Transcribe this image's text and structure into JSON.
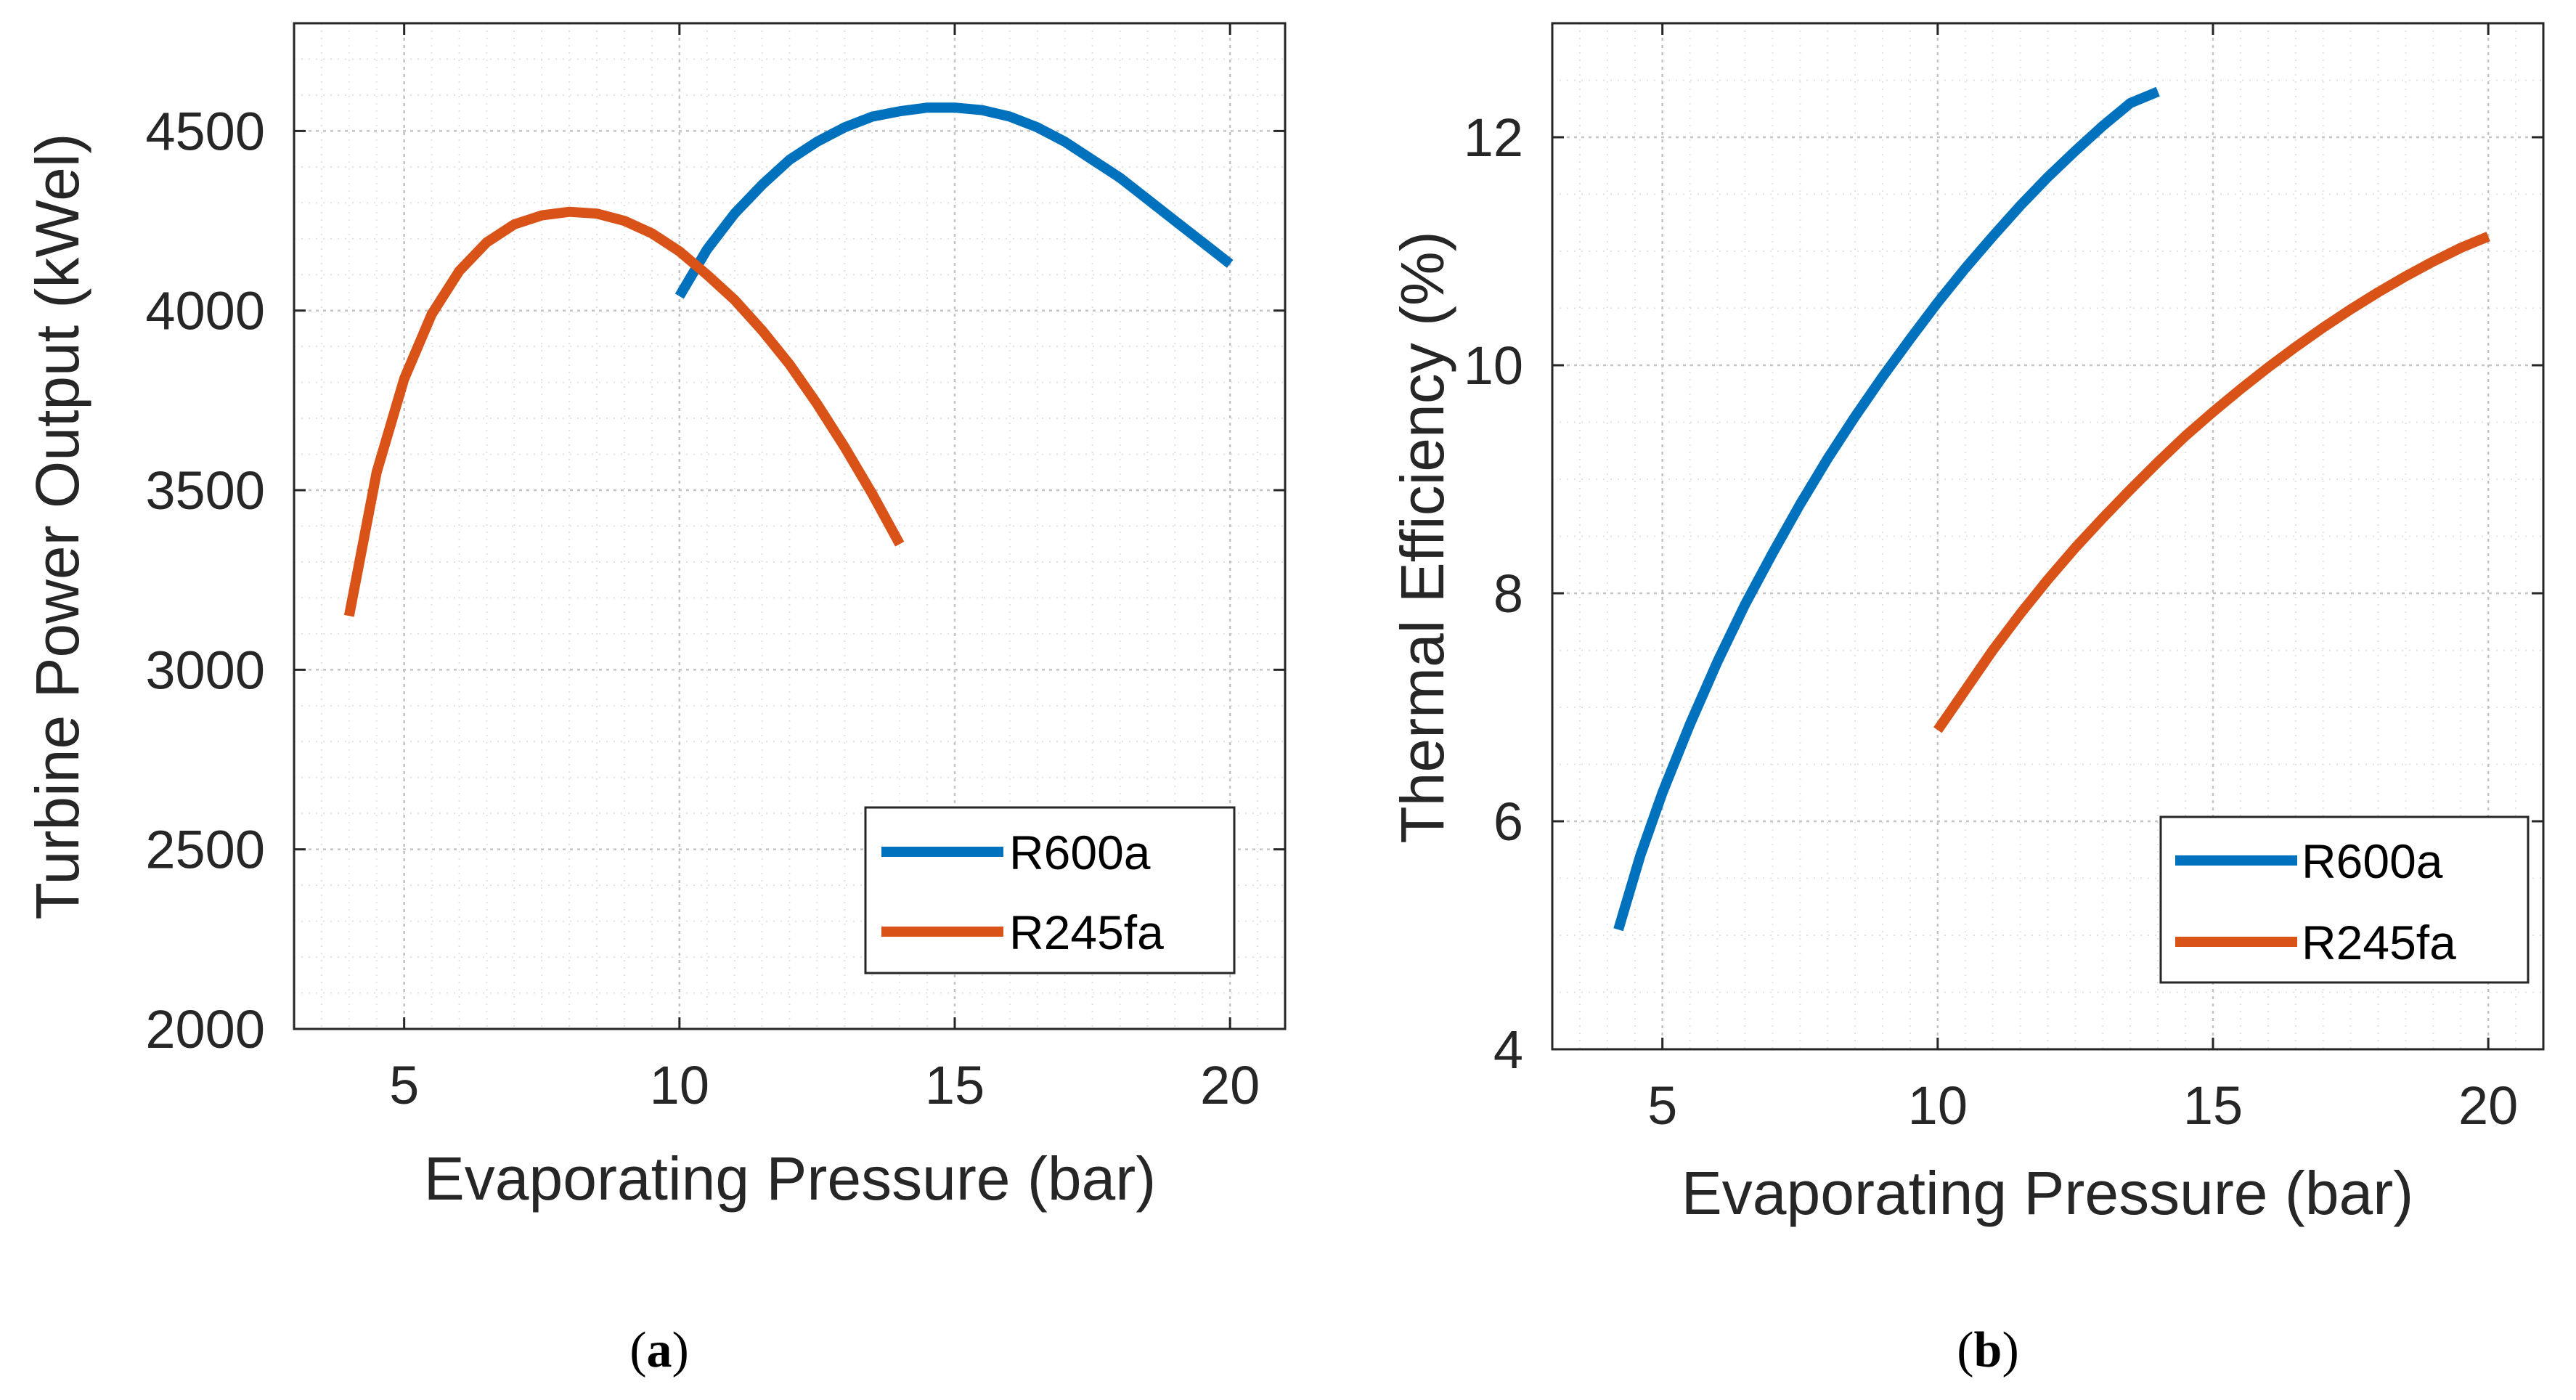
{
  "chart_data": [
    {
      "type": "line",
      "caption_letter": "a",
      "xlabel": "Evaporating Pressure (bar)",
      "ylabel": "Turbine Power Output (kWel)",
      "xlim": [
        3,
        21
      ],
      "ylim": [
        2000,
        4800
      ],
      "xticks": [
        5,
        10,
        15,
        20
      ],
      "yticks": [
        2000,
        2500,
        3000,
        3500,
        4000,
        4500
      ],
      "xminor": [
        3,
        3.5,
        4,
        4.5,
        5.5,
        6,
        6.5,
        7,
        7.5,
        8,
        8.5,
        9,
        9.5,
        10.5,
        11,
        11.5,
        12,
        12.5,
        13,
        13.5,
        14,
        14.5,
        15.5,
        16,
        16.5,
        17,
        17.5,
        18,
        18.5,
        19,
        19.5,
        20.5,
        21
      ],
      "yminor": [
        2100,
        2200,
        2300,
        2400,
        2600,
        2700,
        2800,
        2900,
        3100,
        3200,
        3300,
        3400,
        3600,
        3700,
        3800,
        3900,
        4100,
        4200,
        4300,
        4400,
        4600,
        4700
      ],
      "grid": "on",
      "legend_location": "bottom-right",
      "series": [
        {
          "name": "R600a",
          "color": "#0072BD",
          "x": [
            10,
            10.5,
            11,
            11.5,
            12,
            12.5,
            13,
            13.5,
            14,
            14.5,
            15,
            15.5,
            16,
            16.5,
            17,
            17.5,
            18,
            18.5,
            19,
            19.5,
            20
          ],
          "y": [
            4040,
            4170,
            4270,
            4350,
            4420,
            4470,
            4510,
            4540,
            4555,
            4565,
            4565,
            4558,
            4540,
            4510,
            4470,
            4420,
            4370,
            4310,
            4250,
            4190,
            4130
          ]
        },
        {
          "name": "R245fa",
          "color": "#D95319",
          "x": [
            4,
            4.5,
            5,
            5.5,
            6,
            6.5,
            7,
            7.5,
            8,
            8.5,
            9,
            9.5,
            10,
            10.5,
            11,
            11.5,
            12,
            12.5,
            13,
            13.5,
            14
          ],
          "y": [
            3150,
            3550,
            3810,
            3990,
            4110,
            4190,
            4240,
            4265,
            4275,
            4270,
            4250,
            4215,
            4165,
            4100,
            4030,
            3945,
            3850,
            3740,
            3620,
            3490,
            3350
          ]
        }
      ]
    },
    {
      "type": "line",
      "caption_letter": "b",
      "xlabel": "Evaporating Pressure (bar)",
      "ylabel": "Thermal Efficiency (%)",
      "xlim": [
        3,
        21
      ],
      "ylim": [
        4,
        13
      ],
      "xticks": [
        5,
        10,
        15,
        20
      ],
      "yticks": [
        4,
        6,
        8,
        10,
        12
      ],
      "xminor": [
        3,
        3.5,
        4,
        4.5,
        5.5,
        6,
        6.5,
        7,
        7.5,
        8,
        8.5,
        9,
        9.5,
        10.5,
        11,
        11.5,
        12,
        12.5,
        13,
        13.5,
        14,
        14.5,
        15.5,
        16,
        16.5,
        17,
        17.5,
        18,
        18.5,
        19,
        19.5,
        20.5,
        21
      ],
      "yminor": [
        4.5,
        5,
        5.5,
        6.5,
        7,
        7.5,
        8.5,
        9,
        9.5,
        10.5,
        11,
        11.5,
        12.5,
        13
      ],
      "grid": "on",
      "legend_location": "bottom-right",
      "series": [
        {
          "name": "R600a",
          "color": "#0072BD",
          "x": [
            4.2,
            4.6,
            5,
            5.5,
            6,
            6.5,
            7,
            7.5,
            8,
            8.5,
            9,
            9.5,
            10,
            10.5,
            11,
            11.5,
            12,
            12.5,
            13,
            13.5,
            14
          ],
          "y": [
            5.05,
            5.7,
            6.25,
            6.85,
            7.4,
            7.9,
            8.35,
            8.78,
            9.18,
            9.55,
            9.9,
            10.23,
            10.55,
            10.85,
            11.13,
            11.4,
            11.65,
            11.88,
            12.1,
            12.3,
            12.4
          ]
        },
        {
          "name": "R245fa",
          "color": "#D95319",
          "x": [
            10,
            10.5,
            11,
            11.5,
            12,
            12.5,
            13,
            13.5,
            14,
            14.5,
            15,
            15.5,
            16,
            16.5,
            17,
            17.5,
            18,
            18.5,
            19,
            19.5,
            20
          ],
          "y": [
            6.8,
            7.15,
            7.5,
            7.82,
            8.12,
            8.4,
            8.66,
            8.91,
            9.15,
            9.38,
            9.59,
            9.79,
            9.98,
            10.16,
            10.33,
            10.49,
            10.64,
            10.78,
            10.91,
            11.03,
            11.13
          ]
        }
      ]
    }
  ]
}
